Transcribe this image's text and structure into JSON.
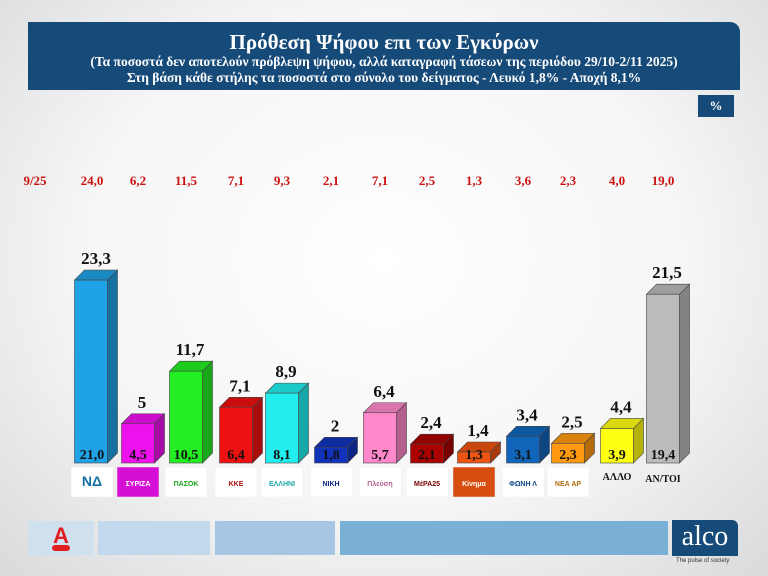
{
  "header": {
    "title": "Πρόθεση Ψήφου επι των Εγκύρων",
    "subtitle1": "(Τα ποσοστά δεν αποτελούν πρόβλεψη ψήφου, αλλά καταγραφή τάσεων της περιόδου  29/10-2/11 2025)",
    "subtitle2": "Στη βάση κάθε στήλης τα ποσοστά στο σύνολο του δείγματος - Λευκό 1,8% - Αποχή 8,1%"
  },
  "unit_badge": "%",
  "footer": {
    "brand": "alco",
    "tagline": "The pulse of society",
    "channel_logo": "Alpha News"
  },
  "chart_data": {
    "type": "bar",
    "title": "Πρόθεση Ψήφου επι των Εγκύρων",
    "previous_label": "9/25",
    "categories": [
      "ΝΕΑ ΔΗΜΟΚΡΑΤΙΑ",
      "ΣΥΡΙΖΑ",
      "ΠΑΣΟΚ",
      "ΚΚΕ",
      "ΕΛΛΗΝΙΚΗ ΛΥΣΗ",
      "ΝΙΚΗ",
      "Πλεύση Ελευθερίας",
      "ΜέΡΑ25",
      "Κίνημα Δημοκρατίας",
      "ΦΩΝΗ ΛΟΓΙΚΗΣ",
      "ΝΕΑ ΑΡΙΣΤΕΡΑ",
      "ΑΛΛΟ",
      "ΑΝ/ΤΟΙ"
    ],
    "text_categories": [
      11,
      12
    ],
    "series": [
      {
        "name": "valid",
        "labels": [
          "23,3",
          "5",
          "11,7",
          "7,1",
          "8,9",
          "2",
          "6,4",
          "2,4",
          "1,4",
          "3,4",
          "2,5",
          "4,4",
          "21,5"
        ],
        "values": [
          23.3,
          5,
          11.7,
          7.1,
          8.9,
          2,
          6.4,
          2.4,
          1.4,
          3.4,
          2.5,
          4.4,
          21.5
        ]
      },
      {
        "name": "sample",
        "labels": [
          "21,0",
          "4,5",
          "10,5",
          "6,4",
          "8,1",
          "1,8",
          "5,7",
          "2,1",
          "1,3",
          "3,1",
          "2,3",
          "3,9",
          "19,4"
        ],
        "values": [
          21.0,
          4.5,
          10.5,
          6.4,
          8.1,
          1.8,
          5.7,
          2.1,
          1.3,
          3.1,
          2.3,
          3.9,
          19.4
        ]
      },
      {
        "name": "9/25",
        "labels": [
          "24,0",
          "6,2",
          "11,5",
          "7,1",
          "9,3",
          "2,1",
          "7,1",
          "2,5",
          "1,3",
          "3,6",
          "2,3",
          "4,0",
          "19,0"
        ],
        "values": [
          24.0,
          6.2,
          11.5,
          7.1,
          9.3,
          2.1,
          7.1,
          2.5,
          1.3,
          3.6,
          2.3,
          4.0,
          19.0
        ]
      }
    ],
    "colors": [
      "#1fa2e6",
      "#ee11ee",
      "#22ee22",
      "#ee1111",
      "#22eeee",
      "#1133bb",
      "#ff88cc",
      "#aa0000",
      "#ee5511",
      "#1166bb",
      "#ff9911",
      "#ffff11",
      "#bbbbbb"
    ],
    "previous_color": "#cc1111",
    "ylim": [
      0,
      25
    ],
    "grid": false
  }
}
